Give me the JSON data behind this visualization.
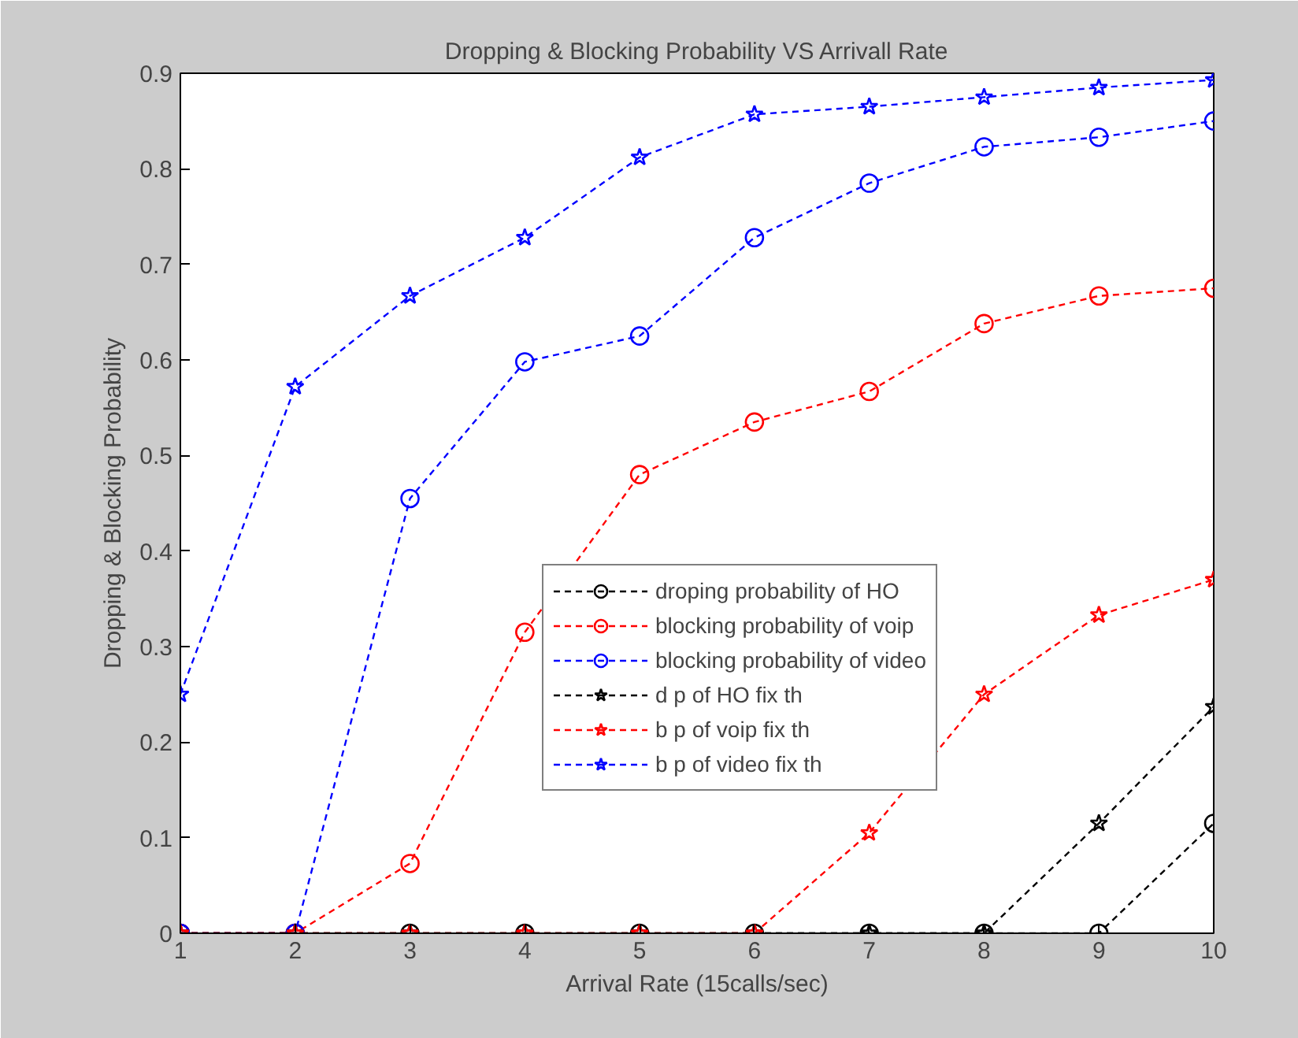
{
  "chart_data": {
    "type": "line",
    "title": "Dropping & Blocking Probability VS Arrivall Rate",
    "xlabel": "Arrival Rate (15calls/sec)",
    "ylabel": "Dropping & Blocking Probability",
    "x": [
      1,
      2,
      3,
      4,
      5,
      6,
      7,
      8,
      9,
      10
    ],
    "xlim": [
      1,
      10
    ],
    "xticks": [
      1,
      2,
      3,
      4,
      5,
      6,
      7,
      8,
      9,
      10
    ],
    "ylim": [
      0,
      0.9
    ],
    "yticks": [
      0,
      0.1,
      0.2,
      0.3,
      0.4,
      0.5,
      0.6,
      0.7,
      0.8,
      0.9
    ],
    "grid": false,
    "legend": "center",
    "line_style": "dashed",
    "series": [
      {
        "name": "droping probability of HO",
        "color": "#000000",
        "marker": "circle",
        "values": [
          0,
          0,
          0,
          0,
          0,
          0,
          0,
          0,
          0,
          0.115
        ]
      },
      {
        "name": "blocking probability of voip",
        "color": "#ff0000",
        "marker": "circle",
        "values": [
          0,
          0,
          0.073,
          0.315,
          0.48,
          0.535,
          0.567,
          0.638,
          0.667,
          0.675
        ]
      },
      {
        "name": "blocking probability of video",
        "color": "#0000ff",
        "marker": "circle",
        "values": [
          0,
          0,
          0.455,
          0.598,
          0.625,
          0.728,
          0.785,
          0.823,
          0.833,
          0.85
        ]
      },
      {
        "name": "d p of HO fix th",
        "color": "#000000",
        "marker": "star",
        "values": [
          0,
          0,
          0,
          0,
          0,
          0,
          0,
          0,
          0.115,
          0.237
        ]
      },
      {
        "name": "b p of voip fix th",
        "color": "#ff0000",
        "marker": "star",
        "values": [
          0,
          0,
          0,
          0,
          0,
          0,
          0.105,
          0.25,
          0.333,
          0.37
        ]
      },
      {
        "name": "b p of video fix th",
        "color": "#0000ff",
        "marker": "star",
        "values": [
          0.25,
          0.572,
          0.667,
          0.728,
          0.812,
          0.857,
          0.865,
          0.875,
          0.885,
          0.893
        ]
      }
    ]
  }
}
